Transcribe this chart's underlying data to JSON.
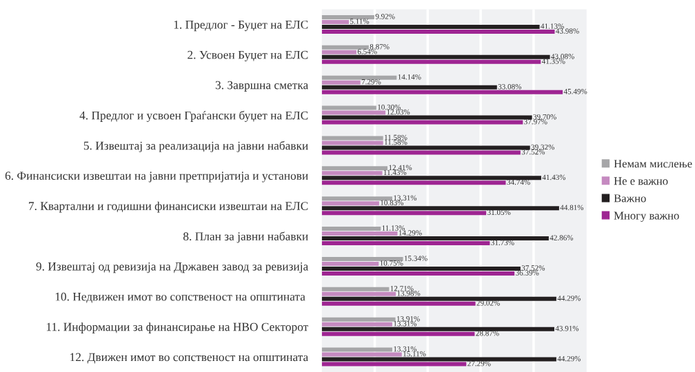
{
  "chart_data": {
    "type": "bar",
    "orientation": "horizontal",
    "categories": [
      "1. Предлог - Буџет на ЕЛС",
      "2. Усвоен Буџет на ЕЛС",
      "3. Завршна сметка",
      "4. Предлог и усвоен Граѓански буџет на ЕЛС",
      "5. Извештај за реализација на јавни набавки",
      "6. Финансиски извештаи на јавни претпријатија и установи",
      "7. Квартални и годишни финансиски извештаи на ЕЛС",
      "8. План за јавни набавки",
      "9. Извештај од ревизија на Државен завод за ревизија",
      "10. Недвижен имот во сопственост на општината ",
      "11. Информации за финансирање на НВО Секторот",
      "12. Движен имот во сопственост на општината"
    ],
    "series": [
      {
        "name": "Немам мислење",
        "color": "#a6a6a8",
        "values": [
          9.92,
          8.87,
          14.14,
          10.3,
          11.58,
          12.41,
          13.31,
          11.13,
          15.34,
          12.71,
          13.91,
          13.31
        ],
        "value_labels": [
          "9.92%",
          "8.87%",
          "14.14%",
          "10.30%",
          "11.58%",
          "12.41%",
          "13.31%",
          "11.13%",
          "15.34%",
          "12.71%",
          "13.91%",
          "13.31%"
        ]
      },
      {
        "name": "Не е важно",
        "color": "#c58ac0",
        "values": [
          5.11,
          6.54,
          7.29,
          12.03,
          11.58,
          11.43,
          10.83,
          14.29,
          10.75,
          13.98,
          13.31,
          15.11
        ],
        "value_labels": [
          "5.11%",
          "6.54%",
          "7.29%",
          "12.03%",
          "11.58%",
          "11.43%",
          "10.83%",
          "14.29%",
          "10.75%",
          "13.98%",
          "13.31%",
          "15.11%"
        ]
      },
      {
        "name": "Важно",
        "color": "#231f20",
        "values": [
          41.13,
          43.08,
          33.08,
          39.7,
          39.32,
          41.43,
          44.81,
          42.86,
          37.52,
          44.29,
          43.91,
          44.29
        ],
        "value_labels": [
          "41.13%",
          "43.08%",
          "33.08%",
          "39.70%",
          "39.32%",
          "41.43%",
          "44.81%",
          "42.86%",
          "37.52%",
          "44.29%",
          "43.91%",
          "44.29%"
        ]
      },
      {
        "name": "Многу важно",
        "color": "#9e2592",
        "values": [
          43.98,
          41.35,
          45.49,
          37.97,
          37.52,
          34.74,
          31.05,
          31.73,
          36.39,
          29.02,
          28.87,
          27.29
        ],
        "value_labels": [
          "43.98%",
          "41.35%",
          "45.49%",
          "37.97%",
          "37.52%",
          "34.74%",
          "31.05%",
          "31.73%",
          "36.39%",
          "29.02%",
          "28.87%",
          "27.29%"
        ]
      }
    ],
    "xlim": [
      0,
      50
    ],
    "xticks": [
      {
        "value": 10,
        "label": null
      },
      {
        "value": 20,
        "label": null
      },
      {
        "value": 30,
        "label": null
      },
      {
        "value": 40,
        "label": null
      }
    ],
    "grid": "x",
    "legend": "right",
    "tick_labels": "y"
  }
}
